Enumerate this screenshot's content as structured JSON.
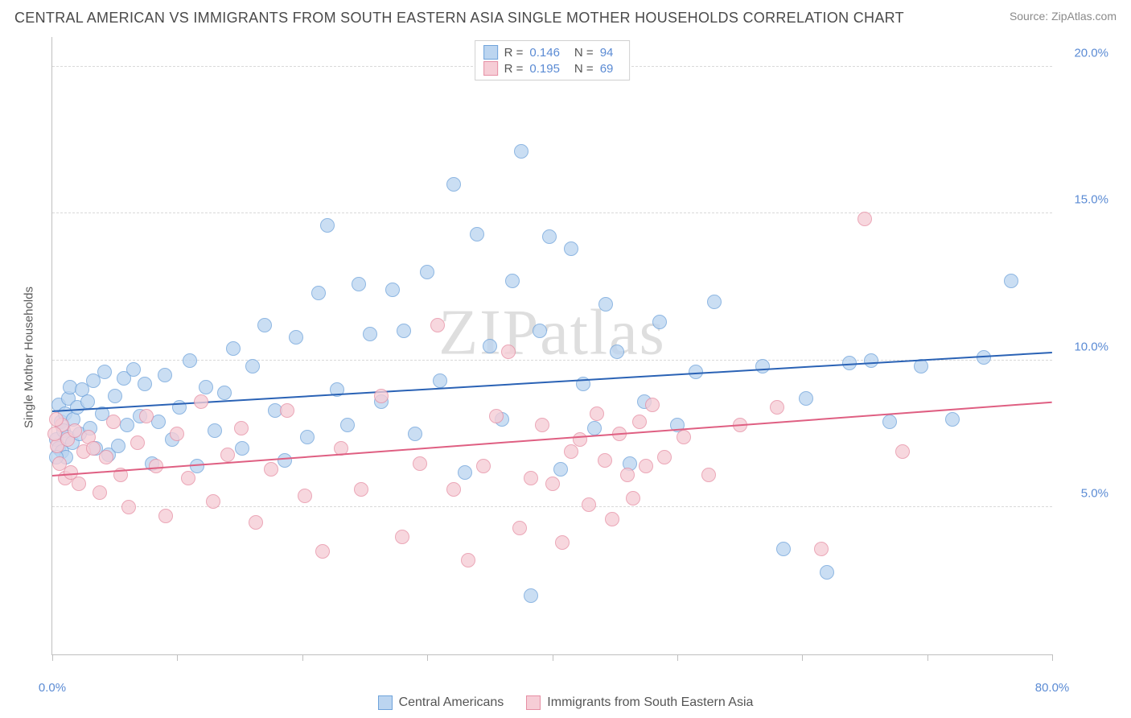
{
  "title": "CENTRAL AMERICAN VS IMMIGRANTS FROM SOUTH EASTERN ASIA SINGLE MOTHER HOUSEHOLDS CORRELATION CHART",
  "source": "Source: ZipAtlas.com",
  "watermark": "ZIPatlas",
  "ylabel": "Single Mother Households",
  "chart": {
    "type": "scatter",
    "xlim": [
      0,
      80
    ],
    "ylim": [
      0,
      21
    ],
    "xtick_positions": [
      0,
      10,
      20,
      30,
      40,
      50,
      60,
      70,
      80
    ],
    "xtick_labels": {
      "0": "0.0%",
      "80": "80.0%"
    },
    "ytick_positions": [
      5,
      10,
      15,
      20
    ],
    "ytick_labels": {
      "5": "5.0%",
      "10": "10.0%",
      "15": "15.0%",
      "20": "20.0%"
    },
    "grid_y": [
      5,
      10,
      15,
      20
    ],
    "grid_color": "#d9d9d9",
    "axis_color": "#bfbfbf",
    "label_color": "#5b8bd4",
    "label_fontsize": 15,
    "point_radius": 9,
    "point_border_width": 1,
    "background": "#ffffff"
  },
  "series": [
    {
      "name": "Central Americans",
      "fill": "#bcd5f0",
      "stroke": "#6fa3db",
      "trend_color": "#2a62b5",
      "r": 0.146,
      "n": 94,
      "trend": {
        "x1": 0,
        "y1": 8.3,
        "x2": 80,
        "y2": 10.3
      },
      "points": [
        [
          0.3,
          7.3
        ],
        [
          0.5,
          7.0
        ],
        [
          0.5,
          8.5
        ],
        [
          0.7,
          7.9
        ],
        [
          0.8,
          6.9
        ],
        [
          0.9,
          7.6
        ],
        [
          1.0,
          8.2
        ],
        [
          1.1,
          6.7
        ],
        [
          1.2,
          7.4
        ],
        [
          1.3,
          8.7
        ],
        [
          1.4,
          9.1
        ],
        [
          1.6,
          7.2
        ],
        [
          1.7,
          8.0
        ],
        [
          2.0,
          8.4
        ],
        [
          2.2,
          7.5
        ],
        [
          2.4,
          9.0
        ],
        [
          2.8,
          8.6
        ],
        [
          3.0,
          7.7
        ],
        [
          3.3,
          9.3
        ],
        [
          3.5,
          7.0
        ],
        [
          4.0,
          8.2
        ],
        [
          4.2,
          9.6
        ],
        [
          4.5,
          6.8
        ],
        [
          5.0,
          8.8
        ],
        [
          5.3,
          7.1
        ],
        [
          5.7,
          9.4
        ],
        [
          6.0,
          7.8
        ],
        [
          6.5,
          9.7
        ],
        [
          7.0,
          8.1
        ],
        [
          7.4,
          9.2
        ],
        [
          8.0,
          6.5
        ],
        [
          8.5,
          7.9
        ],
        [
          9.0,
          9.5
        ],
        [
          9.6,
          7.3
        ],
        [
          10.2,
          8.4
        ],
        [
          11.0,
          10.0
        ],
        [
          11.6,
          6.4
        ],
        [
          12.3,
          9.1
        ],
        [
          13.0,
          7.6
        ],
        [
          13.8,
          8.9
        ],
        [
          14.5,
          10.4
        ],
        [
          15.2,
          7.0
        ],
        [
          16.0,
          9.8
        ],
        [
          17.0,
          11.2
        ],
        [
          17.8,
          8.3
        ],
        [
          18.6,
          6.6
        ],
        [
          19.5,
          10.8
        ],
        [
          20.4,
          7.4
        ],
        [
          21.3,
          12.3
        ],
        [
          22.0,
          14.6
        ],
        [
          22.8,
          9.0
        ],
        [
          23.6,
          7.8
        ],
        [
          24.5,
          12.6
        ],
        [
          25.4,
          10.9
        ],
        [
          26.3,
          8.6
        ],
        [
          27.2,
          12.4
        ],
        [
          28.1,
          11.0
        ],
        [
          29.0,
          7.5
        ],
        [
          30.0,
          13.0
        ],
        [
          31.0,
          9.3
        ],
        [
          32.1,
          16.0
        ],
        [
          33.0,
          6.2
        ],
        [
          34.0,
          14.3
        ],
        [
          35.0,
          10.5
        ],
        [
          36.0,
          8.0
        ],
        [
          36.8,
          12.7
        ],
        [
          37.5,
          17.1
        ],
        [
          38.3,
          2.0
        ],
        [
          39.0,
          11.0
        ],
        [
          39.8,
          14.2
        ],
        [
          40.7,
          6.3
        ],
        [
          41.5,
          13.8
        ],
        [
          42.5,
          9.2
        ],
        [
          43.4,
          7.7
        ],
        [
          44.3,
          11.9
        ],
        [
          45.2,
          10.3
        ],
        [
          46.2,
          6.5
        ],
        [
          47.4,
          8.6
        ],
        [
          48.6,
          11.3
        ],
        [
          50.0,
          7.8
        ],
        [
          51.5,
          9.6
        ],
        [
          53.0,
          12.0
        ],
        [
          56.8,
          9.8
        ],
        [
          58.5,
          3.6
        ],
        [
          60.3,
          8.7
        ],
        [
          62.0,
          2.8
        ],
        [
          63.8,
          9.9
        ],
        [
          65.5,
          10.0
        ],
        [
          67.0,
          7.9
        ],
        [
          76.7,
          12.7
        ],
        [
          69.5,
          9.8
        ],
        [
          72.0,
          8.0
        ],
        [
          74.5,
          10.1
        ],
        [
          0.3,
          6.7
        ]
      ]
    },
    {
      "name": "Immigrants from South Eastern Asia",
      "fill": "#f6cdd6",
      "stroke": "#e68fa4",
      "trend_color": "#df5f82",
      "r": 0.195,
      "n": 69,
      "trend": {
        "x1": 0,
        "y1": 6.1,
        "x2": 80,
        "y2": 8.6
      },
      "points": [
        [
          0.4,
          7.1
        ],
        [
          0.6,
          6.5
        ],
        [
          0.8,
          7.8
        ],
        [
          1.0,
          6.0
        ],
        [
          1.2,
          7.3
        ],
        [
          1.5,
          6.2
        ],
        [
          1.8,
          7.6
        ],
        [
          2.1,
          5.8
        ],
        [
          2.5,
          6.9
        ],
        [
          2.9,
          7.4
        ],
        [
          3.3,
          7.0
        ],
        [
          3.8,
          5.5
        ],
        [
          4.3,
          6.7
        ],
        [
          4.9,
          7.9
        ],
        [
          5.5,
          6.1
        ],
        [
          6.1,
          5.0
        ],
        [
          6.8,
          7.2
        ],
        [
          7.5,
          8.1
        ],
        [
          8.3,
          6.4
        ],
        [
          9.1,
          4.7
        ],
        [
          10.0,
          7.5
        ],
        [
          10.9,
          6.0
        ],
        [
          11.9,
          8.6
        ],
        [
          12.9,
          5.2
        ],
        [
          14.0,
          6.8
        ],
        [
          15.1,
          7.7
        ],
        [
          16.3,
          4.5
        ],
        [
          17.5,
          6.3
        ],
        [
          18.8,
          8.3
        ],
        [
          20.2,
          5.4
        ],
        [
          21.6,
          3.5
        ],
        [
          23.1,
          7.0
        ],
        [
          24.7,
          5.6
        ],
        [
          26.3,
          8.8
        ],
        [
          28.0,
          4.0
        ],
        [
          29.4,
          6.5
        ],
        [
          30.8,
          11.2
        ],
        [
          32.1,
          5.6
        ],
        [
          33.3,
          3.2
        ],
        [
          34.5,
          6.4
        ],
        [
          35.5,
          8.1
        ],
        [
          36.5,
          10.3
        ],
        [
          37.4,
          4.3
        ],
        [
          38.3,
          6.0
        ],
        [
          39.2,
          7.8
        ],
        [
          40.0,
          5.8
        ],
        [
          40.8,
          3.8
        ],
        [
          41.5,
          6.9
        ],
        [
          42.2,
          7.3
        ],
        [
          42.9,
          5.1
        ],
        [
          43.6,
          8.2
        ],
        [
          44.2,
          6.6
        ],
        [
          44.8,
          4.6
        ],
        [
          45.4,
          7.5
        ],
        [
          46.0,
          6.1
        ],
        [
          46.5,
          5.3
        ],
        [
          47.0,
          7.9
        ],
        [
          47.5,
          6.4
        ],
        [
          48.0,
          8.5
        ],
        [
          49.0,
          6.7
        ],
        [
          50.5,
          7.4
        ],
        [
          52.5,
          6.1
        ],
        [
          55.0,
          7.8
        ],
        [
          58.0,
          8.4
        ],
        [
          61.5,
          3.6
        ],
        [
          65.0,
          14.8
        ],
        [
          68.0,
          6.9
        ],
        [
          0.2,
          7.5
        ],
        [
          0.3,
          8.0
        ]
      ]
    }
  ],
  "legend_top": {
    "r_label": "R =",
    "n_label": "N ="
  },
  "legend_bottom": [
    {
      "label": "Central Americans",
      "series": 0
    },
    {
      "label": "Immigrants from South Eastern Asia",
      "series": 1
    }
  ]
}
